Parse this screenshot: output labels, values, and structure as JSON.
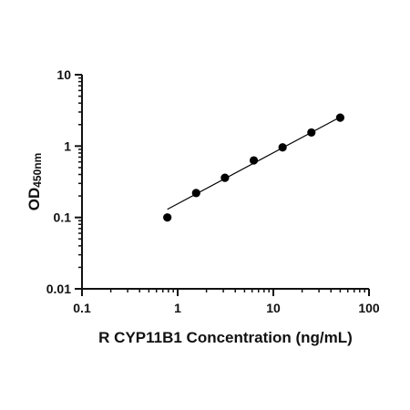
{
  "chart_data": {
    "type": "scatter",
    "xlabel": "R CYP11B1 Concentration (ng/mL)",
    "ylabel": "OD",
    "ylabel_subscript": "450nm",
    "x_scale": "log",
    "y_scale": "log",
    "xlim": [
      0.1,
      100
    ],
    "ylim": [
      0.01,
      10
    ],
    "x_ticks": [
      0.1,
      1,
      10,
      100
    ],
    "x_tick_labels": [
      "0.1",
      "1",
      "10",
      "100"
    ],
    "y_ticks": [
      0.01,
      0.1,
      1,
      10
    ],
    "y_tick_labels": [
      "0.01",
      "0.1",
      "1",
      "10"
    ],
    "grid": false,
    "series": [
      {
        "x": [
          0.78,
          1.56,
          3.12,
          6.25,
          12.5,
          25,
          50
        ],
        "y": [
          0.1,
          0.22,
          0.36,
          0.63,
          0.96,
          1.55,
          2.5
        ],
        "marker": "circle",
        "color": "#000000"
      }
    ],
    "fit_line": {
      "x": [
        0.78,
        50
      ],
      "y": [
        0.13,
        2.55
      ],
      "color": "#000000"
    }
  }
}
